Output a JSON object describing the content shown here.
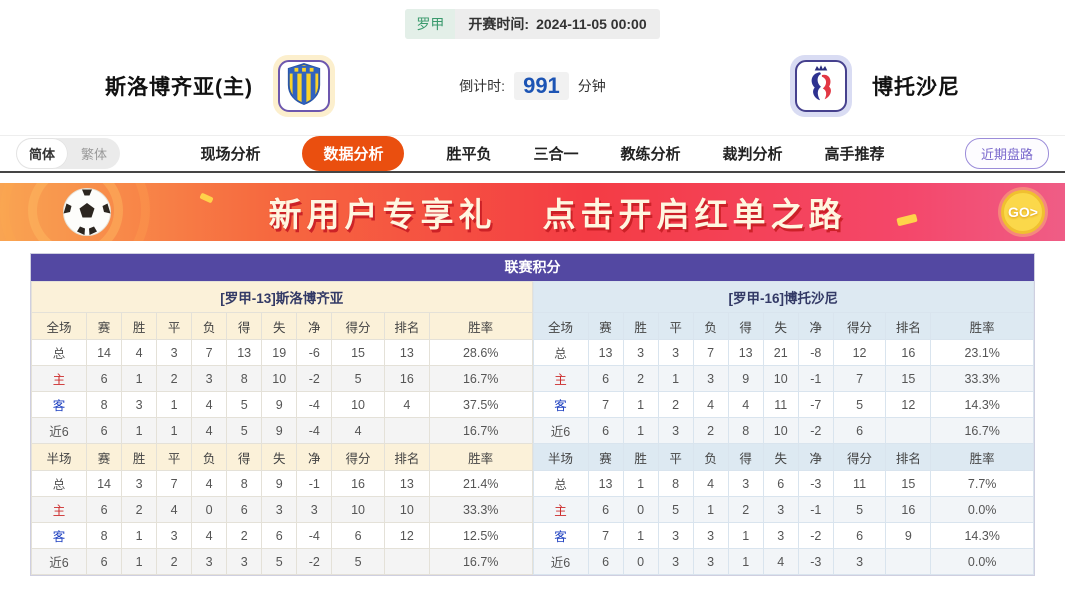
{
  "top_bar": {
    "league": "罗甲",
    "kickoff_label": "开赛时间:",
    "kickoff_time": "2024-11-05 00:00"
  },
  "header": {
    "home_team": "斯洛博齐亚(主)",
    "away_team": "博托沙尼",
    "countdown_label": "倒计时:",
    "countdown_value": "991",
    "countdown_unit": "分钟"
  },
  "nav": {
    "lang_options": [
      "简体",
      "繁体"
    ],
    "active_lang": "简体",
    "tabs": [
      {
        "label": "现场分析",
        "active": false
      },
      {
        "label": "数据分析",
        "active": true
      },
      {
        "label": "胜平负",
        "active": false
      },
      {
        "label": "三合一",
        "active": false
      },
      {
        "label": "教练分析",
        "active": false
      },
      {
        "label": "裁判分析",
        "active": false
      },
      {
        "label": "高手推荐",
        "active": false
      }
    ],
    "recent_trend_button": "近期盘路"
  },
  "banner": {
    "headline_left": "新用户专享礼",
    "headline_right": "点击开启红单之路",
    "go_button": "GO>"
  },
  "league_table": {
    "title": "联赛积分",
    "columns": [
      "赛",
      "胜",
      "平",
      "负",
      "得",
      "失",
      "净",
      "得分",
      "排名",
      "胜率"
    ],
    "section_labels": {
      "full": "全场",
      "half": "半场"
    },
    "row_labels": [
      "总",
      "主",
      "客",
      "近6"
    ],
    "home": {
      "team_header": "[罗甲-13]斯洛博齐亚",
      "full": [
        [
          "14",
          "4",
          "3",
          "7",
          "13",
          "19",
          "-6",
          "15",
          "13",
          "28.6%"
        ],
        [
          "6",
          "1",
          "2",
          "3",
          "8",
          "10",
          "-2",
          "5",
          "16",
          "16.7%"
        ],
        [
          "8",
          "3",
          "1",
          "4",
          "5",
          "9",
          "-4",
          "10",
          "4",
          "37.5%"
        ],
        [
          "6",
          "1",
          "1",
          "4",
          "5",
          "9",
          "-4",
          "4",
          "",
          "16.7%"
        ]
      ],
      "half": [
        [
          "14",
          "3",
          "7",
          "4",
          "8",
          "9",
          "-1",
          "16",
          "13",
          "21.4%"
        ],
        [
          "6",
          "2",
          "4",
          "0",
          "6",
          "3",
          "3",
          "10",
          "10",
          "33.3%"
        ],
        [
          "8",
          "1",
          "3",
          "4",
          "2",
          "6",
          "-4",
          "6",
          "12",
          "12.5%"
        ],
        [
          "6",
          "1",
          "2",
          "3",
          "3",
          "5",
          "-2",
          "5",
          "",
          "16.7%"
        ]
      ]
    },
    "away": {
      "team_header": "[罗甲-16]博托沙尼",
      "full": [
        [
          "13",
          "3",
          "3",
          "7",
          "13",
          "21",
          "-8",
          "12",
          "16",
          "23.1%"
        ],
        [
          "6",
          "2",
          "1",
          "3",
          "9",
          "10",
          "-1",
          "7",
          "15",
          "33.3%"
        ],
        [
          "7",
          "1",
          "2",
          "4",
          "4",
          "11",
          "-7",
          "5",
          "12",
          "14.3%"
        ],
        [
          "6",
          "1",
          "3",
          "2",
          "8",
          "10",
          "-2",
          "6",
          "",
          "16.7%"
        ]
      ],
      "half": [
        [
          "13",
          "1",
          "8",
          "4",
          "3",
          "6",
          "-3",
          "11",
          "15",
          "7.7%"
        ],
        [
          "6",
          "0",
          "5",
          "1",
          "2",
          "3",
          "-1",
          "5",
          "16",
          "0.0%"
        ],
        [
          "7",
          "1",
          "3",
          "3",
          "1",
          "3",
          "-2",
          "6",
          "9",
          "14.3%"
        ],
        [
          "6",
          "0",
          "3",
          "3",
          "1",
          "4",
          "-3",
          "3",
          "",
          "0.0%"
        ]
      ]
    }
  },
  "colors": {
    "accent_orange": "#ea4f0f",
    "table_header_purple": "#5348a2",
    "home_tint": "#fbf1d9",
    "away_tint": "#dde9f2",
    "home_row_red": "#cc2b2b",
    "away_row_blue": "#1f41c0",
    "countdown_blue": "#1c54b4",
    "league_green": "#3a9a6d"
  }
}
